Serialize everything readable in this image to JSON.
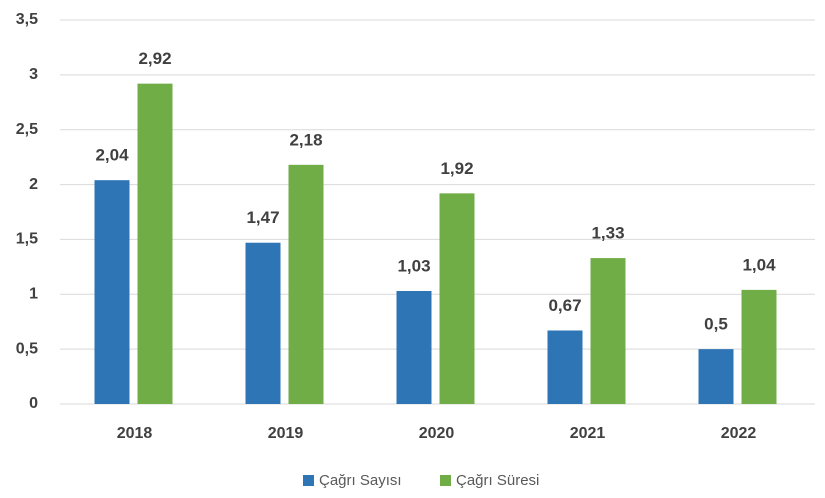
{
  "chart_data": {
    "type": "bar",
    "categories": [
      "2018",
      "2019",
      "2020",
      "2021",
      "2022"
    ],
    "series": [
      {
        "name": "Çağrı Sayısı",
        "color": "#2e75b6",
        "values": [
          2.04,
          1.47,
          1.03,
          0.67,
          0.5
        ],
        "value_labels": [
          "2,04",
          "1,47",
          "1,03",
          "0,67",
          "0,5"
        ]
      },
      {
        "name": "Çağrı Süresi",
        "color": "#70ad47",
        "values": [
          2.92,
          2.18,
          1.92,
          1.33,
          1.04
        ],
        "value_labels": [
          "2,92",
          "2,18",
          "1,92",
          "1,33",
          "1,04"
        ]
      }
    ],
    "ylim": [
      0,
      3.5
    ],
    "yticks": [
      0,
      {
        "value": 0.5,
        "label": "0,5"
      },
      1,
      {
        "value": 1.5,
        "label": "1,5"
      },
      2,
      {
        "value": 2.5,
        "label": "2,5"
      },
      3,
      {
        "value": 3.5,
        "label": "3,5"
      }
    ],
    "grid": true,
    "legend": "bottom"
  }
}
